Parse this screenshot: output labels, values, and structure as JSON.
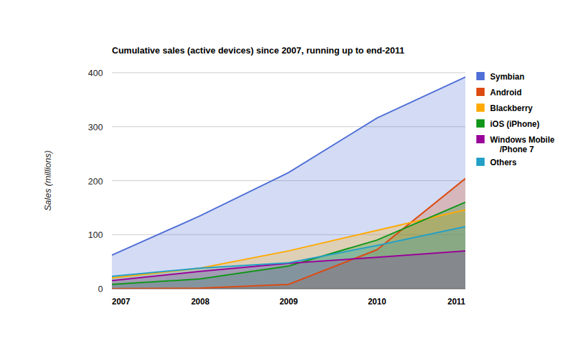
{
  "chart_data": {
    "type": "area",
    "title": "Cumulative sales (active devices) since 2007, running up to end-2011",
    "y_label": "Sales (millions)",
    "categories": [
      "2007",
      "2008",
      "2009",
      "2010",
      "2011"
    ],
    "series": [
      {
        "name": "Symbian",
        "color": "#4f6fd6",
        "values": [
          62,
          135,
          215,
          316,
          392
        ]
      },
      {
        "name": "Android",
        "color": "#dc4a12",
        "values": [
          0,
          1,
          8,
          72,
          204
        ]
      },
      {
        "name": "Blackberry",
        "color": "#ffaa00",
        "values": [
          20,
          38,
          70,
          108,
          146
        ]
      },
      {
        "name": "iOS (iPhone)",
        "color": "#109618",
        "values": [
          8,
          18,
          42,
          90,
          160
        ]
      },
      {
        "name": "Windows Mobile /Phone 7",
        "color": "#990099",
        "values": [
          15,
          32,
          47,
          58,
          70
        ]
      },
      {
        "name": "Others",
        "color": "#22a0c8",
        "values": [
          23,
          38,
          48,
          80,
          115
        ]
      }
    ],
    "ylim": [
      0,
      400
    ],
    "yticks": [
      0,
      100,
      200,
      300,
      400
    ],
    "grid": true,
    "legend": "top-right"
  }
}
